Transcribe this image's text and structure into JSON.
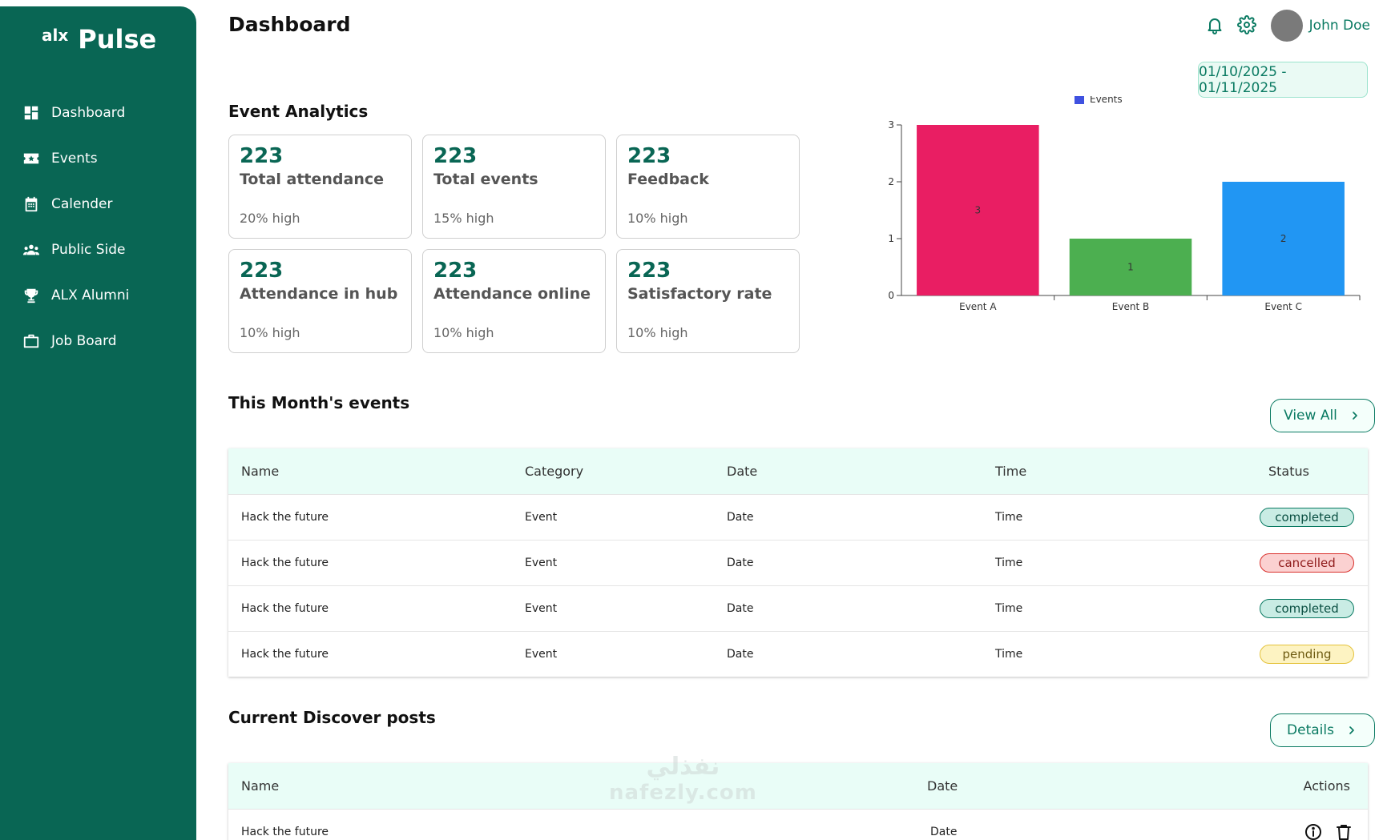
{
  "brand": {
    "prefix": "alx",
    "name": "Pulse"
  },
  "sidebar": {
    "items": [
      {
        "label": "Dashboard",
        "icon": "dashboard-icon"
      },
      {
        "label": "Events",
        "icon": "ticket-icon"
      },
      {
        "label": "Calender",
        "icon": "calendar-icon"
      },
      {
        "label": "Public Side",
        "icon": "people-icon"
      },
      {
        "label": "ALX Alumni",
        "icon": "trophy-icon"
      },
      {
        "label": "Job Board",
        "icon": "briefcase-icon"
      }
    ]
  },
  "header": {
    "title": "Dashboard",
    "user_name": "John Doe",
    "date_range": "01/10/2025 - 01/11/2025"
  },
  "analytics": {
    "title": "Event Analytics",
    "cards": [
      {
        "value": "223",
        "label": "Total attendance",
        "sub": "20% high"
      },
      {
        "value": "223",
        "label": "Total events",
        "sub": "15% high"
      },
      {
        "value": "223",
        "label": "Feedback",
        "sub": "10% high"
      },
      {
        "value": "223",
        "label": "Attendance in hub",
        "sub": "10% high"
      },
      {
        "value": "223",
        "label": "Attendance online",
        "sub": "10% high"
      },
      {
        "value": "223",
        "label": "Satisfactory rate",
        "sub": "10% high"
      }
    ]
  },
  "chart_data": {
    "type": "bar",
    "categories": [
      "Event A",
      "Event B",
      "Event C"
    ],
    "series": [
      {
        "name": "Events",
        "values": [
          3,
          1,
          2
        ]
      }
    ],
    "bar_colors": [
      "#e91e63",
      "#4caf50",
      "#2196f3"
    ],
    "legend_color": "#3f51e0",
    "ylim": [
      0,
      3
    ],
    "yticks": [
      0,
      1,
      2,
      3
    ],
    "legend": "top-center",
    "grid": false
  },
  "events": {
    "title": "This Month's events",
    "view_all_label": "View All",
    "columns": [
      "Name",
      "Category",
      "Date",
      "Time",
      "Status"
    ],
    "rows": [
      {
        "name": "Hack the future",
        "category": "Event",
        "date": "Date",
        "time": "Time",
        "status": "completed"
      },
      {
        "name": "Hack the future",
        "category": "Event",
        "date": "Date",
        "time": "Time",
        "status": "cancelled"
      },
      {
        "name": "Hack the future",
        "category": "Event",
        "date": "Date",
        "time": "Time",
        "status": "completed"
      },
      {
        "name": "Hack the future",
        "category": "Event",
        "date": "Date",
        "time": "Time",
        "status": "pending"
      }
    ]
  },
  "discover": {
    "title": "Current Discover posts",
    "details_label": "Details",
    "columns": [
      "Name",
      "Date",
      "Actions"
    ],
    "rows": [
      {
        "name": "Hack the future",
        "date": "Date"
      }
    ]
  },
  "watermark": {
    "line1": "نفذلي",
    "line2": "nafezly.com"
  }
}
